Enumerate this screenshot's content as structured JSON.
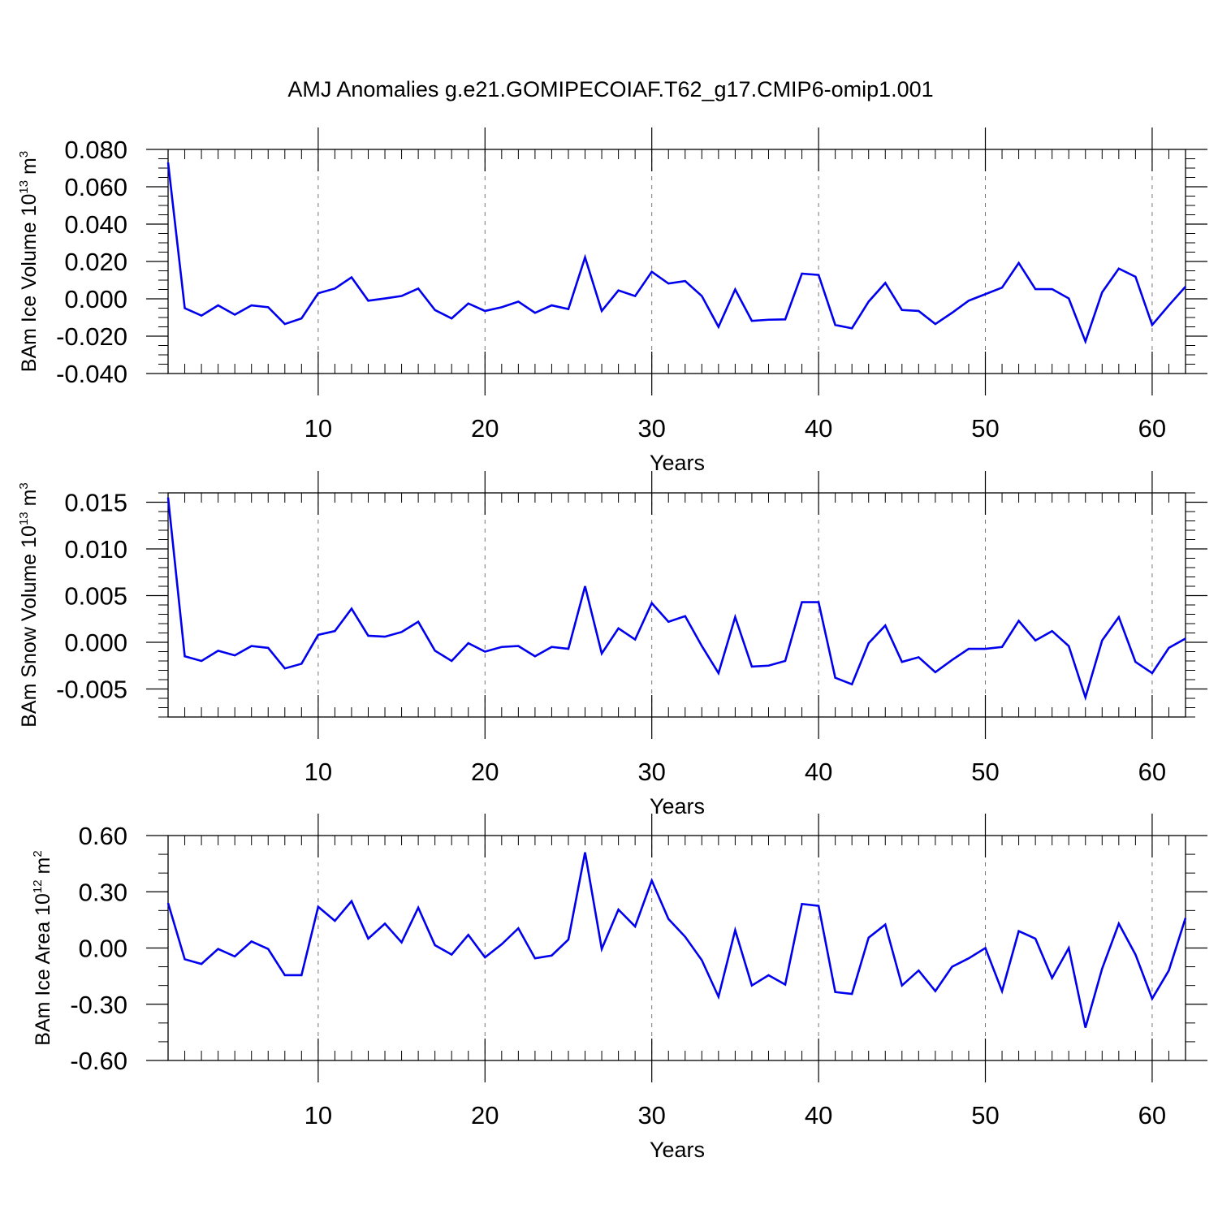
{
  "title": "AMJ Anomalies g.e21.GOMIPECOIAF.T62_g17.CMIP6-omip1.001",
  "chart_data": [
    {
      "type": "line",
      "ylabel": {
        "base": "BAm Ice Volume 10",
        "exp": "13",
        "unit": " m",
        "unit_exp": "3"
      },
      "xlabel": "Years",
      "xlim": [
        1,
        62
      ],
      "ylim": [
        -0.04,
        0.08
      ],
      "yticks": [
        -0.04,
        -0.02,
        0.0,
        0.02,
        0.04,
        0.06,
        0.08
      ],
      "ytick_labels": [
        "-0.040",
        "-0.020",
        "0.000",
        "0.020",
        "0.040",
        "0.060",
        "0.080"
      ],
      "xticks": [
        10,
        20,
        30,
        40,
        50,
        60
      ],
      "xtick_labels": [
        "10",
        "20",
        "30",
        "40",
        "50",
        "60"
      ],
      "grid": "vertical-dashed",
      "line_color": "#0000ee",
      "series": [
        {
          "x_start": 1,
          "values": [
            0.073,
            -0.005,
            -0.009,
            -0.0035,
            -0.0085,
            -0.0035,
            -0.0045,
            -0.0135,
            -0.0105,
            0.003,
            0.0055,
            0.0115,
            -0.001,
            0.0002,
            0.0015,
            0.0055,
            -0.006,
            -0.0105,
            -0.0025,
            -0.0065,
            -0.0045,
            -0.0015,
            -0.0075,
            -0.0035,
            -0.0055,
            0.0222,
            -0.0065,
            0.0045,
            0.0015,
            0.0145,
            0.0082,
            0.0095,
            0.0015,
            -0.015,
            0.005,
            -0.0118,
            -0.0112,
            -0.011,
            0.0135,
            0.0128,
            -0.014,
            -0.0158,
            -0.0015,
            0.0085,
            -0.006,
            -0.0065,
            -0.0135,
            -0.0075,
            -0.001,
            0.0025,
            0.006,
            0.0192,
            0.0052,
            0.0052,
            0.0002,
            -0.0228,
            0.0035,
            0.0162,
            0.0118,
            -0.014,
            -0.0035,
            0.0065
          ]
        }
      ]
    },
    {
      "type": "line",
      "ylabel": {
        "base": "BAm Snow Volume 10",
        "exp": "13",
        "unit": " m",
        "unit_exp": "3"
      },
      "xlabel": "Years",
      "xlim": [
        1,
        62
      ],
      "ylim": [
        -0.008,
        0.016
      ],
      "yticks": [
        -0.005,
        0.0,
        0.005,
        0.01,
        0.015
      ],
      "ytick_labels": [
        "-0.005",
        "0.000",
        "0.005",
        "0.010",
        "0.015"
      ],
      "minor_step": 0.001,
      "xticks": [
        10,
        20,
        30,
        40,
        50,
        60
      ],
      "xtick_labels": [
        "10",
        "20",
        "30",
        "40",
        "50",
        "60"
      ],
      "grid": "vertical-dashed",
      "line_color": "#0000ee",
      "series": [
        {
          "x_start": 1,
          "values": [
            0.0155,
            -0.0015,
            -0.002,
            -0.0009,
            -0.0014,
            -0.0004,
            -0.0006,
            -0.0028,
            -0.0023,
            0.0008,
            0.0012,
            0.0036,
            0.0007,
            0.0006,
            0.0011,
            0.0022,
            -0.0009,
            -0.002,
            -0.0001,
            -0.001,
            -0.0005,
            -0.0004,
            -0.0015,
            -0.0005,
            -0.0007,
            0.006,
            -0.0012,
            0.0015,
            0.0003,
            0.0042,
            0.0022,
            0.0028,
            -0.0004,
            -0.0033,
            0.0027,
            -0.0026,
            -0.0025,
            -0.002,
            0.0043,
            0.0043,
            -0.0038,
            -0.0045,
            -0.0001,
            0.0018,
            -0.0021,
            -0.0016,
            -0.0032,
            -0.0019,
            -0.0007,
            -0.0007,
            -0.0005,
            0.0023,
            0.0002,
            0.0012,
            -0.0004,
            -0.0059,
            0.0002,
            0.0027,
            -0.0021,
            -0.0033,
            -0.0006,
            0.0004
          ]
        }
      ]
    },
    {
      "type": "line",
      "ylabel": {
        "base": "BAm Ice Area 10",
        "exp": "12",
        "unit": " m",
        "unit_exp": "2"
      },
      "xlabel": "Years",
      "xlim": [
        1,
        62
      ],
      "ylim": [
        -0.6,
        0.6
      ],
      "yticks": [
        -0.6,
        -0.3,
        0.0,
        0.3,
        0.6
      ],
      "ytick_labels": [
        "-0.60",
        "-0.30",
        "0.00",
        "0.30",
        "0.60"
      ],
      "minor_step": 0.1,
      "xticks": [
        10,
        20,
        30,
        40,
        50,
        60
      ],
      "xtick_labels": [
        "10",
        "20",
        "30",
        "40",
        "50",
        "60"
      ],
      "grid": "vertical-dashed",
      "line_color": "#0000ee",
      "series": [
        {
          "x_start": 1,
          "values": [
            0.24,
            -0.06,
            -0.085,
            -0.005,
            -0.045,
            0.035,
            -0.005,
            -0.145,
            -0.145,
            0.22,
            0.145,
            0.25,
            0.05,
            0.13,
            0.03,
            0.215,
            0.015,
            -0.035,
            0.07,
            -0.05,
            0.02,
            0.105,
            -0.055,
            -0.04,
            0.045,
            0.51,
            -0.005,
            0.205,
            0.115,
            0.36,
            0.155,
            0.06,
            -0.065,
            -0.26,
            0.095,
            -0.2,
            -0.145,
            -0.195,
            0.235,
            0.225,
            -0.235,
            -0.245,
            0.055,
            0.125,
            -0.2,
            -0.12,
            -0.23,
            -0.1,
            -0.055,
            0.0,
            -0.23,
            0.09,
            0.05,
            -0.16,
            0.0,
            -0.425,
            -0.11,
            0.13,
            -0.035,
            -0.27,
            -0.12,
            0.16
          ]
        }
      ]
    }
  ]
}
